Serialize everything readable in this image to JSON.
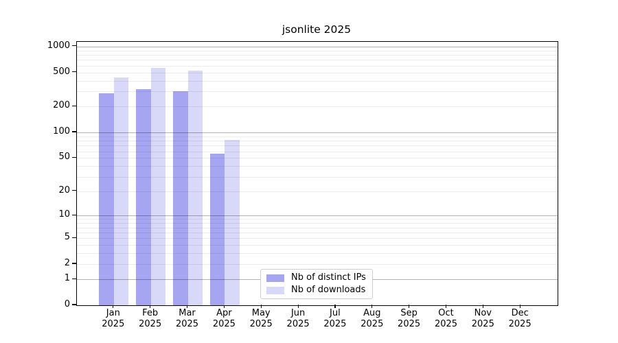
{
  "chart_data": {
    "type": "bar",
    "title": "jsonlite 2025",
    "xlabel": "",
    "ylabel": "",
    "categories": [
      "Jan",
      "Feb",
      "Mar",
      "Apr",
      "May",
      "Jun",
      "Jul",
      "Aug",
      "Sep",
      "Oct",
      "Nov",
      "Dec"
    ],
    "year_label": "2025",
    "series": [
      {
        "name": "Nb of distinct IPs",
        "color": "#a5a5f2",
        "values": [
          288,
          317,
          302,
          56,
          null,
          null,
          null,
          null,
          null,
          null,
          null,
          null
        ]
      },
      {
        "name": "Nb of downloads",
        "color": "#d8d8f8",
        "values": [
          440,
          560,
          525,
          81,
          null,
          null,
          null,
          null,
          null,
          null,
          null,
          null
        ]
      }
    ],
    "y_scale": "log1p",
    "ylim": [
      0,
      1120
    ],
    "y_ticks": [
      0,
      1,
      2,
      5,
      10,
      20,
      50,
      100,
      200,
      500,
      1000
    ],
    "y_major_gridlines": [
      1,
      10,
      100,
      1000
    ],
    "y_minor_gridlines": [
      2,
      3,
      4,
      5,
      6,
      7,
      8,
      9,
      20,
      30,
      40,
      50,
      60,
      70,
      80,
      90,
      200,
      300,
      400,
      500,
      600,
      700,
      800,
      900
    ],
    "grid": true,
    "legend_position": "lower center inside"
  }
}
